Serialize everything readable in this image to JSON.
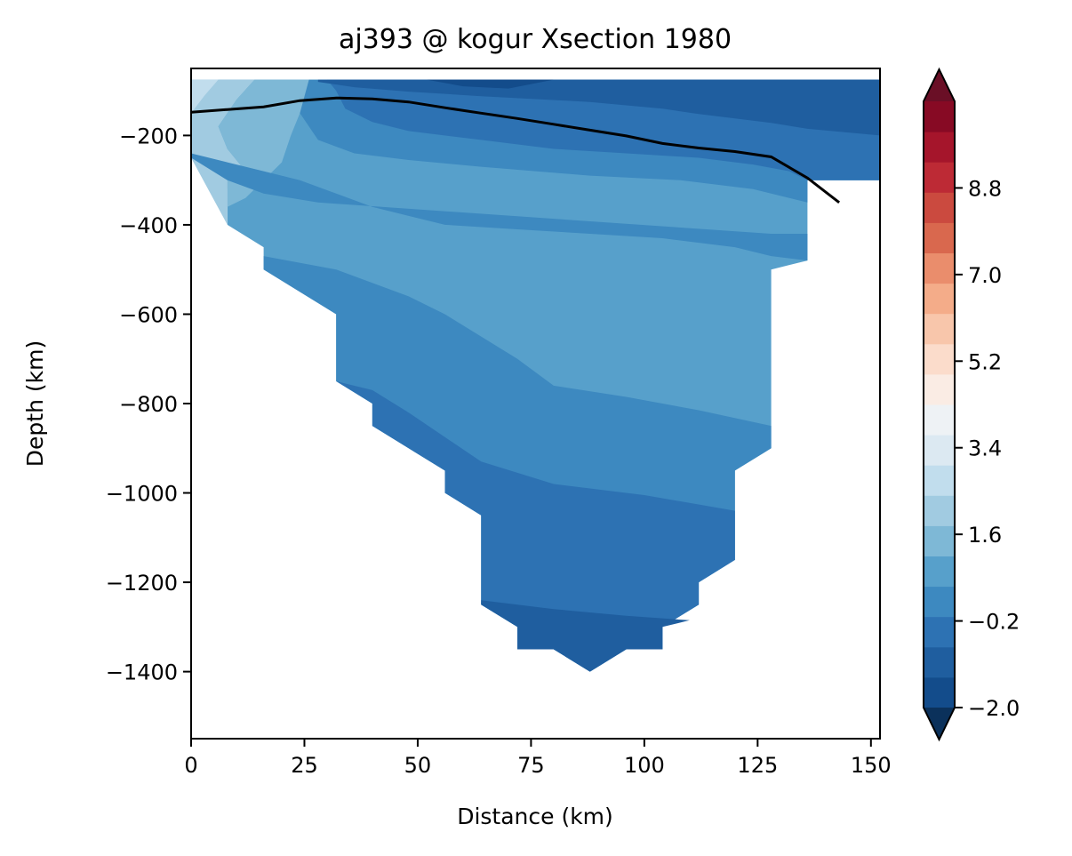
{
  "chart_data": {
    "type": "contour",
    "title": "aj393 @ kogur Xsection 1980",
    "xlabel": "Distance (km)",
    "ylabel": "Depth (km)",
    "xlim": [
      0,
      152
    ],
    "ylim": [
      -1550,
      -50
    ],
    "xticks": [
      0,
      25,
      50,
      75,
      100,
      125,
      150
    ],
    "yticks": [
      -200,
      -400,
      -600,
      -800,
      -1000,
      -1200,
      -1400
    ],
    "colorbar": {
      "min": -2.0,
      "max": 10.6,
      "step": 0.6,
      "extend": "both",
      "tick_values": [
        -2.0,
        -0.2,
        1.6,
        3.4,
        5.2,
        7.0,
        8.8
      ],
      "tick_labels": [
        "−2.0",
        "−0.2",
        "1.6",
        "3.4",
        "5.2",
        "7.0",
        "8.8"
      ],
      "colormap": "RdBu_r",
      "colors": [
        "#0b315b",
        "#134c8b",
        "#1f5e9f",
        "#2d72b3",
        "#3d89c0",
        "#57a0cb",
        "#7eb8d6",
        "#a1cbe1",
        "#c1dded",
        "#dce9f2",
        "#eef2f5",
        "#faece4",
        "#fbdccb",
        "#f8c6ab",
        "#f4ac89",
        "#ea8d6c",
        "#d9684e",
        "#cb4a3f",
        "#bd2a35",
        "#a5152b",
        "#870a24",
        "#6a0f26"
      ]
    },
    "boundary_line": {
      "color": "#000000",
      "x": [
        0,
        8,
        16,
        24,
        32,
        40,
        48,
        56,
        64,
        72,
        80,
        88,
        96,
        104,
        112,
        120,
        128,
        136,
        143
      ],
      "y": [
        -148,
        -142,
        -136,
        -122,
        -116,
        -118,
        -125,
        -138,
        -150,
        -162,
        -175,
        -188,
        -201,
        -218,
        -228,
        -236,
        -248,
        -295,
        -350
      ]
    },
    "bands": [
      {
        "level": 0.8,
        "x": [
          0,
          16,
          16,
          24,
          24,
          136,
          136,
          152,
          152,
          0
        ],
        "y": [
          -75,
          -75,
          -75,
          -75,
          -75,
          -75,
          -75,
          -75,
          -300,
          -300
        ]
      },
      {
        "level": 1.4,
        "x": [
          0,
          8,
          16,
          16,
          24,
          32,
          32,
          136,
          136,
          128,
          128,
          120,
          120,
          0
        ],
        "y": [
          -75,
          -75,
          -75,
          -75,
          -75,
          -75,
          -75,
          -75,
          -300,
          -300,
          -300,
          -300,
          -300,
          -300
        ]
      },
      {
        "level": -0.8,
        "x": [
          28,
          40,
          60,
          80,
          100,
          120,
          136,
          142,
          152,
          152,
          136,
          128,
          120,
          112,
          104,
          88,
          64,
          48,
          36,
          28
        ],
        "y": [
          -75,
          -75,
          -75,
          -75,
          -75,
          -75,
          -75,
          -75,
          -75,
          -200,
          -185,
          -172,
          -162,
          -152,
          -140,
          -125,
          -112,
          -102,
          -92,
          -80
        ]
      }
    ]
  }
}
